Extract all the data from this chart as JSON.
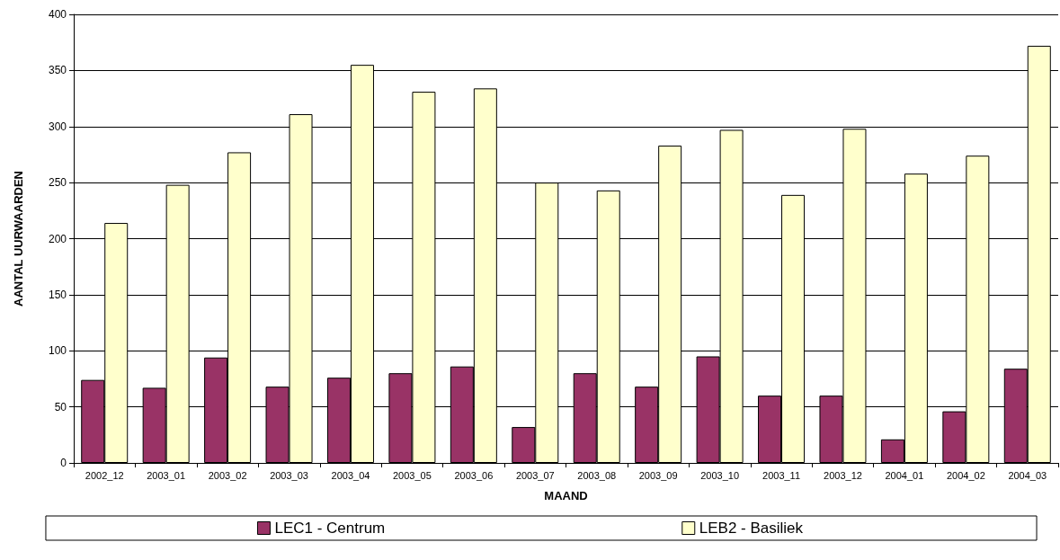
{
  "chart_data": {
    "type": "bar",
    "xlabel": "MAAND",
    "ylabel": "AANTAL UURWAARDEN",
    "categories": [
      "2002_12",
      "2003_01",
      "2003_02",
      "2003_03",
      "2003_04",
      "2003_05",
      "2003_06",
      "2003_07",
      "2003_08",
      "2003_09",
      "2003_10",
      "2003_11",
      "2003_12",
      "2004_01",
      "2004_02",
      "2004_03"
    ],
    "series": [
      {
        "name": "LEC1 - Centrum",
        "color": "#993366",
        "values": [
          74,
          67,
          94,
          68,
          76,
          80,
          86,
          32,
          80,
          68,
          95,
          60,
          60,
          21,
          46,
          84
        ]
      },
      {
        "name": "LEB2 - Basiliek",
        "color": "#ffffcc",
        "values": [
          214,
          248,
          277,
          311,
          355,
          331,
          334,
          250,
          243,
          283,
          297,
          239,
          298,
          258,
          274,
          372
        ]
      }
    ],
    "ylim": [
      0,
      400
    ],
    "yticks": [
      0,
      50,
      100,
      150,
      200,
      250,
      300,
      350,
      400
    ],
    "grid": "y",
    "legend": "bottom"
  }
}
